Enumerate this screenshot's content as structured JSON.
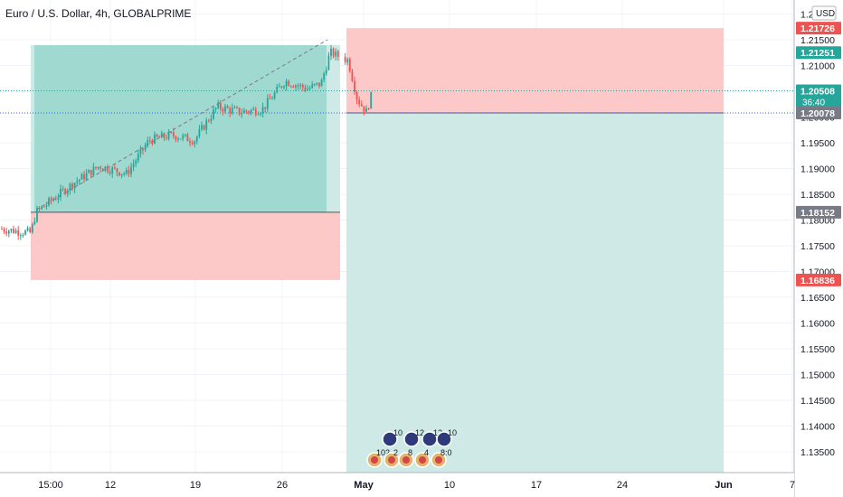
{
  "header": {
    "symbol_title": "Euro / U.S. Dollar, 4h, GLOBALPRIME",
    "currency": "USD"
  },
  "colors": {
    "up": "#26a69a",
    "down": "#ef5350",
    "profit_zone": "#9fd9cf",
    "profit_zone_light": "#cfeae6",
    "loss_zone": "#fcc8c8",
    "grid": "#f0f3fa",
    "last_price_tag": "#26a69a",
    "label_gray": "#787b86"
  },
  "price_axis": {
    "ticks": [
      "1.22000",
      "1.21500",
      "1.21000",
      "1.20500",
      "1.20000",
      "1.19500",
      "1.19000",
      "1.18500",
      "1.18000",
      "1.17500",
      "1.17000",
      "1.16500",
      "1.16000",
      "1.15500",
      "1.15000",
      "1.14500",
      "1.14000",
      "1.13500"
    ],
    "min": 1.13,
    "max": 1.224
  },
  "price_labels": [
    {
      "name": "stop-loss-price-tag",
      "text": "1.21726",
      "price": 1.21726,
      "bg": "#ef5350"
    },
    {
      "name": "high-price-tag",
      "text": "1.21251",
      "price": 1.21251,
      "bg": "#26a69a"
    },
    {
      "name": "last-price-tag",
      "text": "1.20508",
      "price": 1.20508,
      "bg": "#26a69a",
      "countdown": "36:40"
    },
    {
      "name": "entry-price-tag",
      "text": "1.20078",
      "price": 1.20078,
      "bg": "#787b86"
    },
    {
      "name": "prev-entry-price-tag",
      "text": "1.18152",
      "price": 1.18152,
      "bg": "#787b86"
    },
    {
      "name": "prev-stop-price-tag",
      "text": "1.16836",
      "price": 1.16836,
      "bg": "#ef5350"
    }
  ],
  "time_axis": {
    "ticks": [
      "15:00",
      "12",
      "19",
      "26",
      "May",
      "10",
      "17",
      "24",
      "Jun",
      "7"
    ],
    "bold": [
      "May",
      "Jun"
    ]
  },
  "calendar_badges": {
    "top_row": [
      "10",
      "12",
      "12",
      "10"
    ],
    "bottom_row": [
      "102",
      "2",
      "8",
      "4",
      "8:0"
    ]
  }
}
